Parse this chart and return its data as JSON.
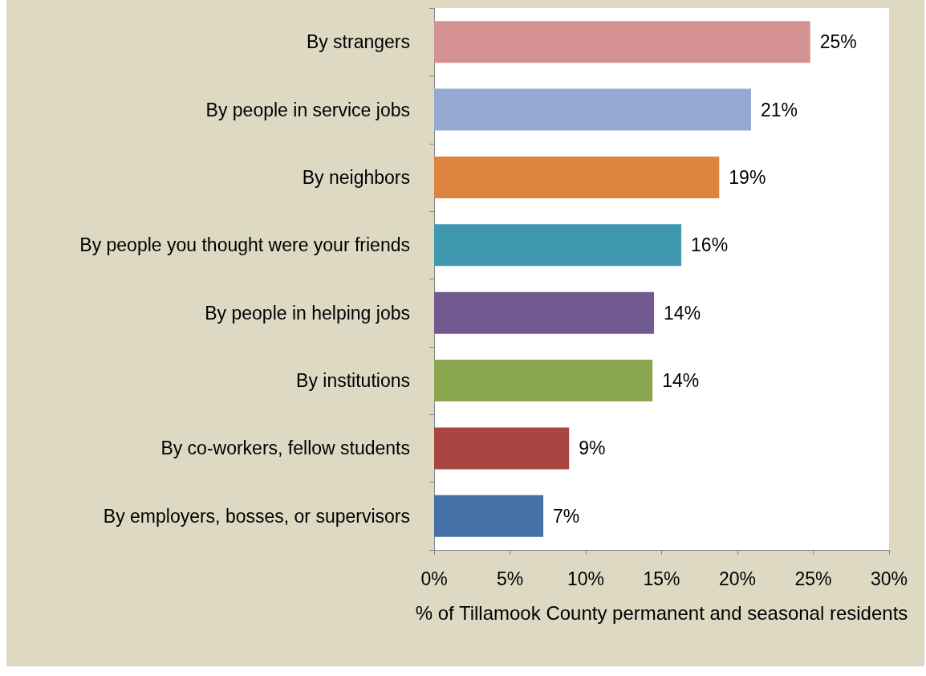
{
  "chart_data": {
    "type": "bar",
    "orientation": "horizontal",
    "categories": [
      "By strangers",
      "By people in service jobs",
      "By neighbors",
      "By people you thought were your friends",
      "By people in helping jobs",
      "By institutions",
      "By co-workers, fellow students",
      "By employers, bosses, or supervisors"
    ],
    "values": [
      24.8,
      20.9,
      18.8,
      16.3,
      14.5,
      14.4,
      8.9,
      7.2
    ],
    "colors": [
      "#d49392",
      "#95a9d3",
      "#dd8441",
      "#3f98b0",
      "#725990",
      "#8aa74f",
      "#a94644",
      "#4472a8"
    ],
    "value_labels": [
      "25%",
      "21%",
      "19%",
      "16%",
      "14%",
      "14%",
      "9%",
      "7%"
    ],
    "xlabel": "% of Tillamook County permanent and seasonal residents",
    "xlim": [
      0,
      30
    ],
    "xticks": [
      {
        "value": 0,
        "label": "0%"
      },
      {
        "value": 5,
        "label": "5%"
      },
      {
        "value": 10,
        "label": "10%"
      },
      {
        "value": 15,
        "label": "15%"
      },
      {
        "value": 20,
        "label": "20%"
      },
      {
        "value": 25,
        "label": "25%"
      },
      {
        "value": 30,
        "label": "30%"
      }
    ],
    "grid": false
  }
}
